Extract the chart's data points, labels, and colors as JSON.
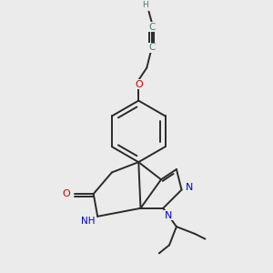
{
  "background_color": "#ebebeb",
  "bond_color": "#2a2a2a",
  "atom_colors": {
    "N": "#0000cc",
    "O": "#cc0000",
    "H": "#4a7a7a",
    "C": "#2a2a2a"
  },
  "figsize": [
    3.0,
    3.0
  ],
  "dpi": 100
}
